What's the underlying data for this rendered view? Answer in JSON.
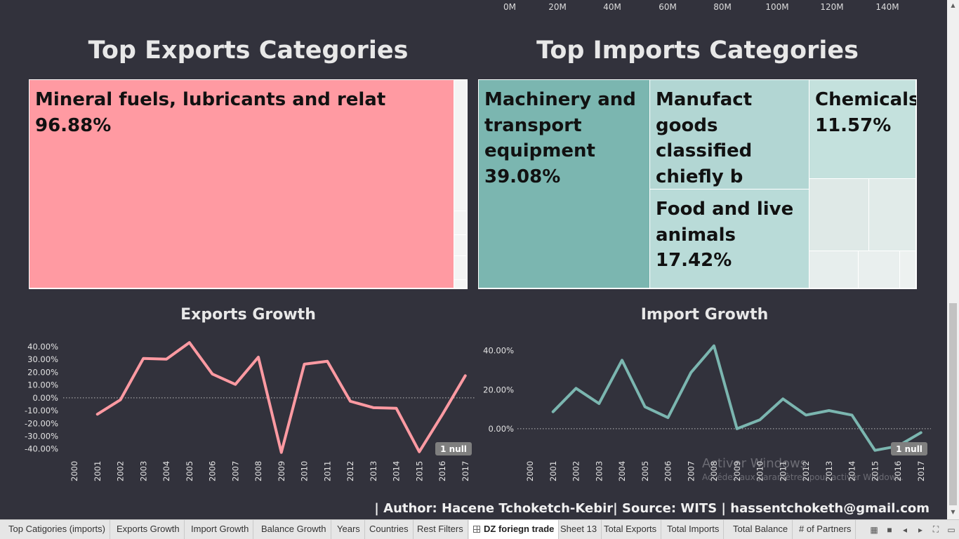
{
  "top_axis": {
    "ticks": [
      "0M",
      "20M",
      "40M",
      "60M",
      "80M",
      "100M",
      "120M",
      "140M"
    ]
  },
  "exports": {
    "title": "Top Exports Categories",
    "tiles": [
      {
        "label": "Mineral fuels, lubricants and relat\n96.88%",
        "color": "#ff9aa2",
        "share": 96.88
      }
    ],
    "chart": {
      "title": "Exports Growth",
      "null_badge": "1 null"
    }
  },
  "imports": {
    "title": "Top Imports Categories",
    "tiles": [
      {
        "label": "Machinery and\ntransport\nequipment\n39.08%",
        "color": "#7bb6b0",
        "share": 39.08
      },
      {
        "label": "Manufact goods\nclassified\nchiefly b",
        "color": "#b2d6d3"
      },
      {
        "label": "Food and live\nanimals\n17.42%",
        "color": "#b9dbd8",
        "share": 17.42
      },
      {
        "label": "Chemicals\n11.57%",
        "color": "#c4e1dd",
        "share": 11.57
      }
    ],
    "chart": {
      "title": "Import Growth",
      "null_badge": "1 null"
    }
  },
  "chart_data": [
    {
      "type": "line",
      "title": "Exports Growth",
      "x": [
        "2000",
        "2001",
        "2002",
        "2003",
        "2004",
        "2005",
        "2006",
        "2007",
        "2008",
        "2009",
        "2010",
        "2011",
        "2012",
        "2013",
        "2014",
        "2015",
        "2016",
        "2017"
      ],
      "series": [
        {
          "color": "#ff9aa2",
          "values": [
            null,
            -12.8,
            -1.6,
            30.8,
            30.2,
            43.2,
            18.6,
            10.5,
            31.8,
            -42.7,
            26.3,
            28.6,
            -2.7,
            -7.7,
            -8.2,
            -42.2,
            -13.2,
            17.3
          ]
        }
      ],
      "yticks": [
        "40.00%",
        "30.00%",
        "20.00%",
        "10.00%",
        "0.00%",
        "-10.00%",
        "-20.00%",
        "-30.00%",
        "-40.00%"
      ],
      "ylim": [
        -44,
        46
      ],
      "zero_line": true
    },
    {
      "type": "line",
      "title": "Import Growth",
      "x": [
        "2000",
        "2001",
        "2002",
        "2003",
        "2004",
        "2005",
        "2006",
        "2007",
        "2008",
        "2009",
        "2010",
        "2011",
        "2012",
        "2013",
        "2014",
        "2015",
        "2016",
        "2017"
      ],
      "series": [
        {
          "color": "#7bb6b0",
          "values": [
            null,
            8.7,
            20.7,
            12.9,
            35.1,
            11.2,
            5.7,
            28.8,
            42.5,
            0.0,
            4.6,
            15.3,
            7.0,
            9.3,
            7.0,
            -11.1,
            -8.9,
            -2.0
          ]
        }
      ],
      "yticks": [
        "40.00%",
        "20.00%",
        "0.00%"
      ],
      "ylim": [
        -13,
        46
      ],
      "zero_line": true
    }
  ],
  "watermark": {
    "title": "Activer Windows",
    "subtitle": "Accédez aux paramètres pour activer Windows."
  },
  "footer": "| Author: Hacene Tchoketch-Kebir| Source: WITS | hassentchoketh@gmail.com",
  "tabs": [
    {
      "label": "Top Catigories (imports)",
      "active": false
    },
    {
      "label": "Exports Growth",
      "active": false
    },
    {
      "label": "Import Growth",
      "active": false
    },
    {
      "label": "Balance Growth",
      "active": false
    },
    {
      "label": "Years",
      "active": false
    },
    {
      "label": "Countries",
      "active": false
    },
    {
      "label": "Rest Filters",
      "active": false
    },
    {
      "label": "DZ foriegn trade",
      "active": true
    },
    {
      "label": "Sheet 13",
      "active": false
    },
    {
      "label": "Total Exports",
      "active": false
    },
    {
      "label": "Total Imports",
      "active": false
    },
    {
      "label": "Total Balance",
      "active": false
    },
    {
      "label": "# of Partners",
      "active": false
    }
  ]
}
